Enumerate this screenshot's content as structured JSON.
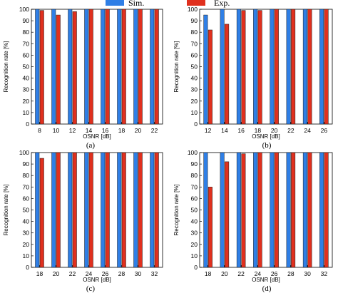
{
  "legend": {
    "items": [
      {
        "label": "Sim.",
        "color": "#2f7fe6"
      },
      {
        "label": "Exp.",
        "color": "#e0301e"
      }
    ]
  },
  "colors": {
    "sim": "#2f7fe6",
    "exp": "#e0301e",
    "edge": "#1a1a1a"
  },
  "chart_data": [
    {
      "type": "bar",
      "panel_label": "(a)",
      "xlabel": "OSNR [dB]",
      "ylabel": "Recognition rate [%]",
      "ylim": [
        0,
        100
      ],
      "yticks": [
        0,
        10,
        20,
        30,
        40,
        50,
        60,
        70,
        80,
        90,
        100
      ],
      "categories": [
        "8",
        "10",
        "12",
        "14",
        "16",
        "18",
        "20",
        "22"
      ],
      "series": [
        {
          "name": "Sim.",
          "values": [
            100,
            100,
            100,
            100,
            100,
            100,
            100,
            100
          ]
        },
        {
          "name": "Exp.",
          "values": [
            99,
            95,
            98,
            100,
            100,
            100,
            100,
            100
          ]
        }
      ]
    },
    {
      "type": "bar",
      "panel_label": "(b)",
      "xlabel": "OSNR [dB]",
      "ylabel": "Recognition rate [%]",
      "ylim": [
        0,
        100
      ],
      "yticks": [
        0,
        10,
        20,
        30,
        40,
        50,
        60,
        70,
        80,
        90,
        100
      ],
      "categories": [
        "12",
        "14",
        "16",
        "18",
        "20",
        "22",
        "24",
        "26"
      ],
      "series": [
        {
          "name": "Sim.",
          "values": [
            95,
            100,
            100,
            100,
            100,
            100,
            100,
            100
          ]
        },
        {
          "name": "Exp.",
          "values": [
            82,
            87,
            99,
            99,
            100,
            100,
            100,
            100
          ]
        }
      ]
    },
    {
      "type": "bar",
      "panel_label": "(c)",
      "xlabel": "OSNR [dB]",
      "ylabel": "Recognition rate [%]",
      "ylim": [
        0,
        100
      ],
      "yticks": [
        0,
        10,
        20,
        30,
        40,
        50,
        60,
        70,
        80,
        90,
        100
      ],
      "categories": [
        "18",
        "20",
        "22",
        "24",
        "26",
        "28",
        "30",
        "32"
      ],
      "series": [
        {
          "name": "Sim.",
          "values": [
            100,
            100,
            100,
            100,
            100,
            100,
            100,
            100
          ]
        },
        {
          "name": "Exp.",
          "values": [
            95,
            100,
            100,
            100,
            100,
            100,
            100,
            100
          ]
        }
      ]
    },
    {
      "type": "bar",
      "panel_label": "(d)",
      "xlabel": "OSNR [dB]",
      "ylabel": "Recognition rate [%]",
      "ylim": [
        0,
        100
      ],
      "yticks": [
        0,
        10,
        20,
        30,
        40,
        50,
        60,
        70,
        80,
        90,
        100
      ],
      "categories": [
        "18",
        "20",
        "22",
        "24",
        "26",
        "28",
        "30",
        "32"
      ],
      "series": [
        {
          "name": "Sim.",
          "values": [
            100,
            100,
            100,
            100,
            100,
            100,
            100,
            100
          ]
        },
        {
          "name": "Exp.",
          "values": [
            70,
            92,
            99,
            100,
            100,
            100,
            100,
            100
          ]
        }
      ]
    }
  ]
}
